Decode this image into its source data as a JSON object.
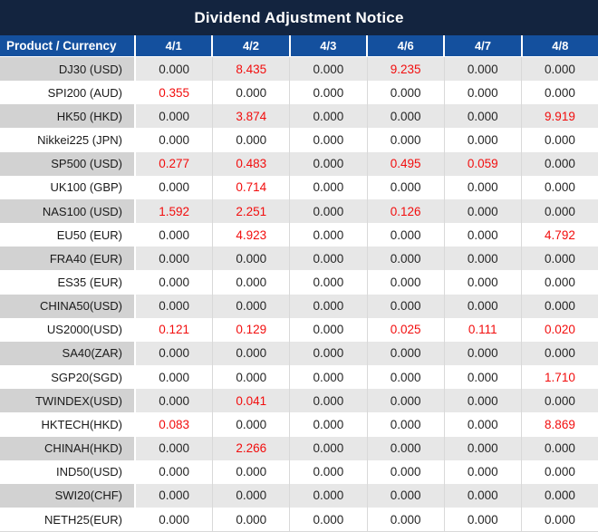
{
  "title": "Dividend Adjustment Notice",
  "colors": {
    "title_bg": "#13243F",
    "header_bg": "#14509E",
    "header_text": "#FFFFFF",
    "zebra_label_bg": "#D2D2D2",
    "zebra_value_bg": "#E7E7E7",
    "grid_line": "#D9D9D9",
    "value_text": "#262626",
    "red_value": "#F20D0D"
  },
  "table": {
    "header": {
      "label": "Product / Currency",
      "dates": [
        "4/1",
        "4/2",
        "4/3",
        "4/6",
        "4/7",
        "4/8"
      ]
    },
    "zero_value": "0.000",
    "rows": [
      {
        "product": "DJ30 (USD)",
        "values": [
          "0.000",
          "8.435",
          "0.000",
          "9.235",
          "0.000",
          "0.000"
        ]
      },
      {
        "product": "SPI200 (AUD)",
        "values": [
          "0.355",
          "0.000",
          "0.000",
          "0.000",
          "0.000",
          "0.000"
        ]
      },
      {
        "product": "HK50 (HKD)",
        "values": [
          "0.000",
          "3.874",
          "0.000",
          "0.000",
          "0.000",
          "9.919"
        ]
      },
      {
        "product": "Nikkei225 (JPN)",
        "values": [
          "0.000",
          "0.000",
          "0.000",
          "0.000",
          "0.000",
          "0.000"
        ]
      },
      {
        "product": "SP500 (USD)",
        "values": [
          "0.277",
          "0.483",
          "0.000",
          "0.495",
          "0.059",
          "0.000"
        ]
      },
      {
        "product": "UK100 (GBP)",
        "values": [
          "0.000",
          "0.714",
          "0.000",
          "0.000",
          "0.000",
          "0.000"
        ]
      },
      {
        "product": "NAS100 (USD)",
        "values": [
          "1.592",
          "2.251",
          "0.000",
          "0.126",
          "0.000",
          "0.000"
        ]
      },
      {
        "product": "EU50 (EUR)",
        "values": [
          "0.000",
          "4.923",
          "0.000",
          "0.000",
          "0.000",
          "4.792"
        ]
      },
      {
        "product": "FRA40 (EUR)",
        "values": [
          "0.000",
          "0.000",
          "0.000",
          "0.000",
          "0.000",
          "0.000"
        ]
      },
      {
        "product": "ES35 (EUR)",
        "values": [
          "0.000",
          "0.000",
          "0.000",
          "0.000",
          "0.000",
          "0.000"
        ]
      },
      {
        "product": "CHINA50(USD)",
        "values": [
          "0.000",
          "0.000",
          "0.000",
          "0.000",
          "0.000",
          "0.000"
        ]
      },
      {
        "product": "US2000(USD)",
        "values": [
          "0.121",
          "0.129",
          "0.000",
          "0.025",
          "0.111",
          "0.020"
        ]
      },
      {
        "product": "SA40(ZAR)",
        "values": [
          "0.000",
          "0.000",
          "0.000",
          "0.000",
          "0.000",
          "0.000"
        ]
      },
      {
        "product": "SGP20(SGD)",
        "values": [
          "0.000",
          "0.000",
          "0.000",
          "0.000",
          "0.000",
          "1.710"
        ]
      },
      {
        "product": "TWINDEX(USD)",
        "values": [
          "0.000",
          "0.041",
          "0.000",
          "0.000",
          "0.000",
          "0.000"
        ]
      },
      {
        "product": "HKTECH(HKD)",
        "values": [
          "0.083",
          "0.000",
          "0.000",
          "0.000",
          "0.000",
          "8.869"
        ]
      },
      {
        "product": "CHINAH(HKD)",
        "values": [
          "0.000",
          "2.266",
          "0.000",
          "0.000",
          "0.000",
          "0.000"
        ]
      },
      {
        "product": "IND50(USD)",
        "values": [
          "0.000",
          "0.000",
          "0.000",
          "0.000",
          "0.000",
          "0.000"
        ]
      },
      {
        "product": "SWI20(CHF)",
        "values": [
          "0.000",
          "0.000",
          "0.000",
          "0.000",
          "0.000",
          "0.000"
        ]
      },
      {
        "product": "NETH25(EUR)",
        "values": [
          "0.000",
          "0.000",
          "0.000",
          "0.000",
          "0.000",
          "0.000"
        ]
      }
    ]
  }
}
